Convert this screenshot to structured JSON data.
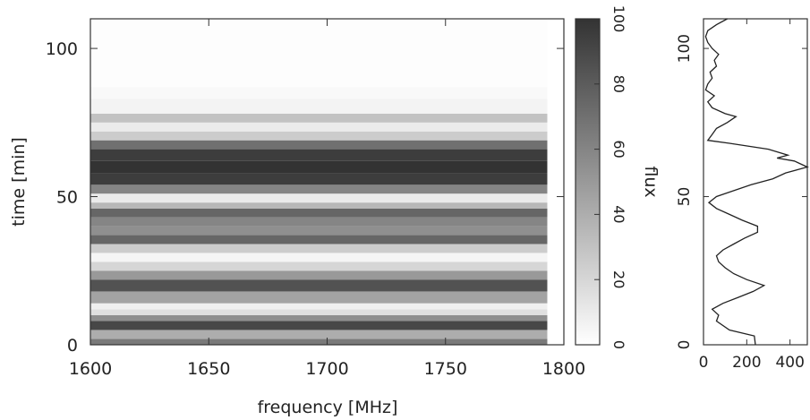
{
  "chart_data": [
    {
      "type": "heatmap",
      "xlabel": "frequency [MHz]",
      "ylabel": "time [min]",
      "xlim": [
        1600,
        1800
      ],
      "ylim": [
        0,
        110
      ],
      "xticks": [
        1600,
        1650,
        1700,
        1750,
        1800
      ],
      "yticks": [
        0,
        50,
        100
      ],
      "grid": false,
      "data_extent_mhz": [
        1600,
        1793
      ],
      "note_bands": [
        {
          "t_min": 0,
          "t_max": 2,
          "level": 65
        },
        {
          "t_min": 2,
          "t_max": 5,
          "level": 40
        },
        {
          "t_min": 5,
          "t_max": 8,
          "level": 90
        },
        {
          "t_min": 8,
          "t_max": 10,
          "level": 55
        },
        {
          "t_min": 10,
          "t_max": 12,
          "level": 15
        },
        {
          "t_min": 12,
          "t_max": 14,
          "level": 8
        },
        {
          "t_min": 14,
          "t_max": 18,
          "level": 45
        },
        {
          "t_min": 18,
          "t_max": 22,
          "level": 85
        },
        {
          "t_min": 22,
          "t_max": 25,
          "level": 50
        },
        {
          "t_min": 25,
          "t_max": 28,
          "level": 20
        },
        {
          "t_min": 28,
          "t_max": 31,
          "level": 5
        },
        {
          "t_min": 31,
          "t_max": 34,
          "level": 25
        },
        {
          "t_min": 34,
          "t_max": 37,
          "level": 75
        },
        {
          "t_min": 37,
          "t_max": 40,
          "level": 55
        },
        {
          "t_min": 40,
          "t_max": 43,
          "level": 60
        },
        {
          "t_min": 43,
          "t_max": 46,
          "level": 75
        },
        {
          "t_min": 46,
          "t_max": 48,
          "level": 35
        },
        {
          "t_min": 48,
          "t_max": 51,
          "level": 10
        },
        {
          "t_min": 51,
          "t_max": 54,
          "level": 60
        },
        {
          "t_min": 54,
          "t_max": 58,
          "level": 95
        },
        {
          "t_min": 58,
          "t_max": 62,
          "level": 100
        },
        {
          "t_min": 62,
          "t_max": 66,
          "level": 95
        },
        {
          "t_min": 66,
          "t_max": 69,
          "level": 70
        },
        {
          "t_min": 69,
          "t_max": 72,
          "level": 25
        },
        {
          "t_min": 72,
          "t_max": 75,
          "level": 10
        },
        {
          "t_min": 75,
          "t_max": 78,
          "level": 30
        },
        {
          "t_min": 78,
          "t_max": 83,
          "level": 6
        },
        {
          "t_min": 83,
          "t_max": 87,
          "level": 3
        },
        {
          "t_min": 87,
          "t_max": 110,
          "level": 1
        }
      ],
      "colorbar": {
        "label": "flux",
        "range": [
          0,
          100
        ],
        "ticks": [
          0,
          20,
          40,
          60,
          80,
          100
        ],
        "low_color": "#ffffff",
        "high_color": "#333333"
      }
    },
    {
      "type": "line",
      "xlabel": "",
      "ylabel": "",
      "xlim": [
        0,
        480
      ],
      "ylim": [
        0,
        110
      ],
      "xticks": [
        0,
        200,
        400
      ],
      "yticks": [
        0,
        50,
        100
      ],
      "grid": false,
      "series": [
        {
          "points": [
            [
              240,
              0
            ],
            [
              235,
              3
            ],
            [
              120,
              5
            ],
            [
              60,
              8
            ],
            [
              70,
              10
            ],
            [
              40,
              12
            ],
            [
              90,
              14
            ],
            [
              160,
              16
            ],
            [
              230,
              18
            ],
            [
              280,
              20
            ],
            [
              200,
              22
            ],
            [
              140,
              24
            ],
            [
              100,
              26
            ],
            [
              70,
              28
            ],
            [
              60,
              30
            ],
            [
              90,
              32
            ],
            [
              140,
              34
            ],
            [
              190,
              36
            ],
            [
              250,
              38
            ],
            [
              250,
              40
            ],
            [
              180,
              42
            ],
            [
              120,
              44
            ],
            [
              60,
              46
            ],
            [
              25,
              48
            ],
            [
              60,
              50
            ],
            [
              140,
              52
            ],
            [
              220,
              54
            ],
            [
              320,
              56
            ],
            [
              380,
              58
            ],
            [
              480,
              60
            ],
            [
              420,
              62
            ],
            [
              340,
              63
            ],
            [
              390,
              64
            ],
            [
              300,
              66
            ],
            [
              120,
              68
            ],
            [
              20,
              69
            ],
            [
              40,
              71
            ],
            [
              60,
              73
            ],
            [
              110,
              75
            ],
            [
              150,
              77
            ],
            [
              100,
              78
            ],
            [
              40,
              80
            ],
            [
              20,
              82
            ],
            [
              50,
              84
            ],
            [
              10,
              86
            ],
            [
              20,
              88
            ],
            [
              40,
              90
            ],
            [
              30,
              92
            ],
            [
              60,
              94
            ],
            [
              50,
              96
            ],
            [
              70,
              98
            ],
            [
              40,
              100
            ],
            [
              20,
              102
            ],
            [
              10,
              104
            ],
            [
              20,
              106
            ],
            [
              60,
              108
            ],
            [
              110,
              110
            ]
          ]
        }
      ]
    }
  ]
}
